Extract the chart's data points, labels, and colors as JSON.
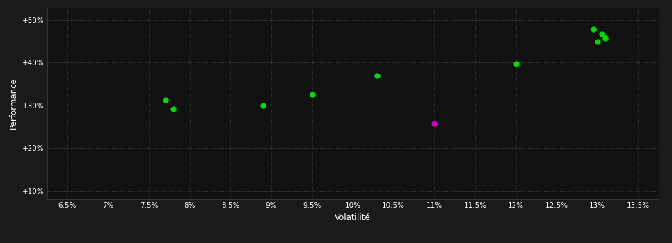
{
  "background_color": "#1a1a1a",
  "plot_bg_color": "#111111",
  "grid_color": "#444444",
  "text_color": "#ffffff",
  "xlabel": "Volatilité",
  "ylabel": "Performance",
  "xlim": [
    0.0625,
    0.1375
  ],
  "ylim": [
    0.08,
    0.53
  ],
  "xticks": [
    0.065,
    0.07,
    0.075,
    0.08,
    0.085,
    0.09,
    0.095,
    0.1,
    0.105,
    0.11,
    0.115,
    0.12,
    0.125,
    0.13,
    0.135
  ],
  "yticks": [
    0.1,
    0.2,
    0.3,
    0.4,
    0.5
  ],
  "green_points": [
    [
      0.077,
      0.313
    ],
    [
      0.078,
      0.291
    ],
    [
      0.089,
      0.299
    ],
    [
      0.095,
      0.326
    ],
    [
      0.103,
      0.37
    ],
    [
      0.12,
      0.398
    ],
    [
      0.1295,
      0.478
    ],
    [
      0.1305,
      0.468
    ],
    [
      0.131,
      0.458
    ],
    [
      0.13,
      0.449
    ]
  ],
  "magenta_points": [
    [
      0.11,
      0.258
    ]
  ],
  "point_size": 25,
  "green_color": "#00dd00",
  "magenta_color": "#cc00cc"
}
